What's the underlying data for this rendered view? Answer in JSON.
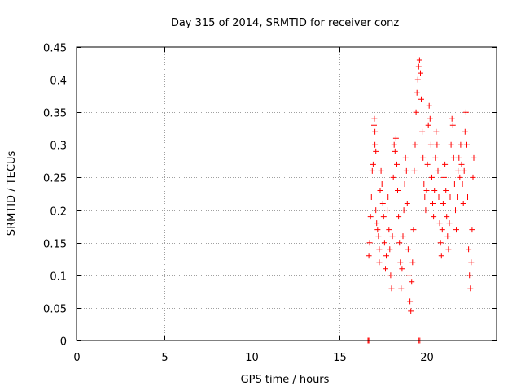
{
  "chart_data": {
    "type": "scatter",
    "title": "Day 315 of 2014, SRMTID for receiver conz",
    "xlabel": "GPS time / hours",
    "ylabel": "SRMTID / TECUs",
    "xlim": [
      0,
      24
    ],
    "ylim": [
      0,
      0.45
    ],
    "x_ticks": [
      0,
      5,
      10,
      15,
      20
    ],
    "y_ticks": [
      0,
      0.05,
      0.1,
      0.15,
      0.2,
      0.25,
      0.3,
      0.35,
      0.4,
      0.45
    ],
    "x_tick_labels": [
      "0",
      "5",
      "10",
      "15",
      "20"
    ],
    "y_tick_labels": [
      "0",
      "0.05",
      "0.1",
      "0.15",
      "0.2",
      "0.25",
      "0.3",
      "0.35",
      "0.4",
      "0.45"
    ],
    "grid": true,
    "marker": "+",
    "color": "#ff0000",
    "series": [
      {
        "name": "SRMTID",
        "points": [
          [
            16.65,
            0.0
          ],
          [
            16.7,
            0.0
          ],
          [
            19.55,
            0.0
          ],
          [
            19.62,
            0.0
          ],
          [
            16.7,
            0.13
          ],
          [
            16.75,
            0.15
          ],
          [
            16.8,
            0.19
          ],
          [
            16.85,
            0.22
          ],
          [
            16.9,
            0.26
          ],
          [
            16.95,
            0.27
          ],
          [
            17.0,
            0.33
          ],
          [
            17.02,
            0.34
          ],
          [
            17.05,
            0.3
          ],
          [
            17.05,
            0.32
          ],
          [
            17.1,
            0.29
          ],
          [
            17.1,
            0.2
          ],
          [
            17.15,
            0.18
          ],
          [
            17.2,
            0.17
          ],
          [
            17.25,
            0.16
          ],
          [
            17.3,
            0.14
          ],
          [
            17.3,
            0.12
          ],
          [
            17.35,
            0.23
          ],
          [
            17.4,
            0.26
          ],
          [
            17.45,
            0.24
          ],
          [
            17.5,
            0.21
          ],
          [
            17.55,
            0.19
          ],
          [
            17.6,
            0.15
          ],
          [
            17.65,
            0.11
          ],
          [
            17.7,
            0.13
          ],
          [
            17.75,
            0.2
          ],
          [
            17.8,
            0.22
          ],
          [
            17.85,
            0.17
          ],
          [
            17.9,
            0.14
          ],
          [
            17.95,
            0.1
          ],
          [
            18.0,
            0.08
          ],
          [
            18.05,
            0.16
          ],
          [
            18.1,
            0.25
          ],
          [
            18.15,
            0.3
          ],
          [
            18.2,
            0.29
          ],
          [
            18.25,
            0.31
          ],
          [
            18.3,
            0.27
          ],
          [
            18.35,
            0.23
          ],
          [
            18.4,
            0.19
          ],
          [
            18.45,
            0.15
          ],
          [
            18.5,
            0.12
          ],
          [
            18.55,
            0.08
          ],
          [
            18.6,
            0.11
          ],
          [
            18.65,
            0.16
          ],
          [
            18.7,
            0.2
          ],
          [
            18.75,
            0.24
          ],
          [
            18.8,
            0.28
          ],
          [
            18.85,
            0.26
          ],
          [
            18.9,
            0.21
          ],
          [
            18.95,
            0.14
          ],
          [
            19.0,
            0.1
          ],
          [
            19.05,
            0.06
          ],
          [
            19.1,
            0.045
          ],
          [
            19.15,
            0.09
          ],
          [
            19.2,
            0.12
          ],
          [
            19.25,
            0.17
          ],
          [
            19.3,
            0.26
          ],
          [
            19.35,
            0.3
          ],
          [
            19.4,
            0.35
          ],
          [
            19.45,
            0.38
          ],
          [
            19.5,
            0.4
          ],
          [
            19.55,
            0.42
          ],
          [
            19.6,
            0.43
          ],
          [
            19.65,
            0.41
          ],
          [
            19.7,
            0.37
          ],
          [
            19.75,
            0.32
          ],
          [
            19.8,
            0.28
          ],
          [
            19.85,
            0.24
          ],
          [
            19.9,
            0.22
          ],
          [
            19.95,
            0.2
          ],
          [
            20.0,
            0.23
          ],
          [
            20.05,
            0.27
          ],
          [
            20.1,
            0.33
          ],
          [
            20.15,
            0.36
          ],
          [
            20.2,
            0.34
          ],
          [
            20.25,
            0.3
          ],
          [
            20.3,
            0.25
          ],
          [
            20.35,
            0.21
          ],
          [
            20.4,
            0.19
          ],
          [
            20.45,
            0.23
          ],
          [
            20.5,
            0.28
          ],
          [
            20.55,
            0.32
          ],
          [
            20.6,
            0.3
          ],
          [
            20.65,
            0.26
          ],
          [
            20.7,
            0.22
          ],
          [
            20.75,
            0.18
          ],
          [
            20.8,
            0.15
          ],
          [
            20.85,
            0.13
          ],
          [
            20.9,
            0.17
          ],
          [
            20.95,
            0.21
          ],
          [
            21.0,
            0.25
          ],
          [
            21.05,
            0.27
          ],
          [
            21.1,
            0.23
          ],
          [
            21.15,
            0.19
          ],
          [
            21.2,
            0.16
          ],
          [
            21.25,
            0.14
          ],
          [
            21.3,
            0.18
          ],
          [
            21.35,
            0.22
          ],
          [
            21.4,
            0.3
          ],
          [
            21.45,
            0.34
          ],
          [
            21.5,
            0.33
          ],
          [
            21.55,
            0.28
          ],
          [
            21.6,
            0.24
          ],
          [
            21.65,
            0.2
          ],
          [
            21.7,
            0.17
          ],
          [
            21.75,
            0.22
          ],
          [
            21.8,
            0.26
          ],
          [
            21.85,
            0.28
          ],
          [
            21.9,
            0.25
          ],
          [
            21.95,
            0.3
          ],
          [
            22.0,
            0.27
          ],
          [
            22.05,
            0.24
          ],
          [
            22.1,
            0.21
          ],
          [
            22.15,
            0.26
          ],
          [
            22.2,
            0.32
          ],
          [
            22.25,
            0.35
          ],
          [
            22.3,
            0.3
          ],
          [
            22.35,
            0.22
          ],
          [
            22.4,
            0.14
          ],
          [
            22.45,
            0.1
          ],
          [
            22.5,
            0.08
          ],
          [
            22.55,
            0.12
          ],
          [
            22.6,
            0.17
          ],
          [
            22.65,
            0.25
          ],
          [
            22.7,
            0.28
          ]
        ]
      }
    ]
  }
}
